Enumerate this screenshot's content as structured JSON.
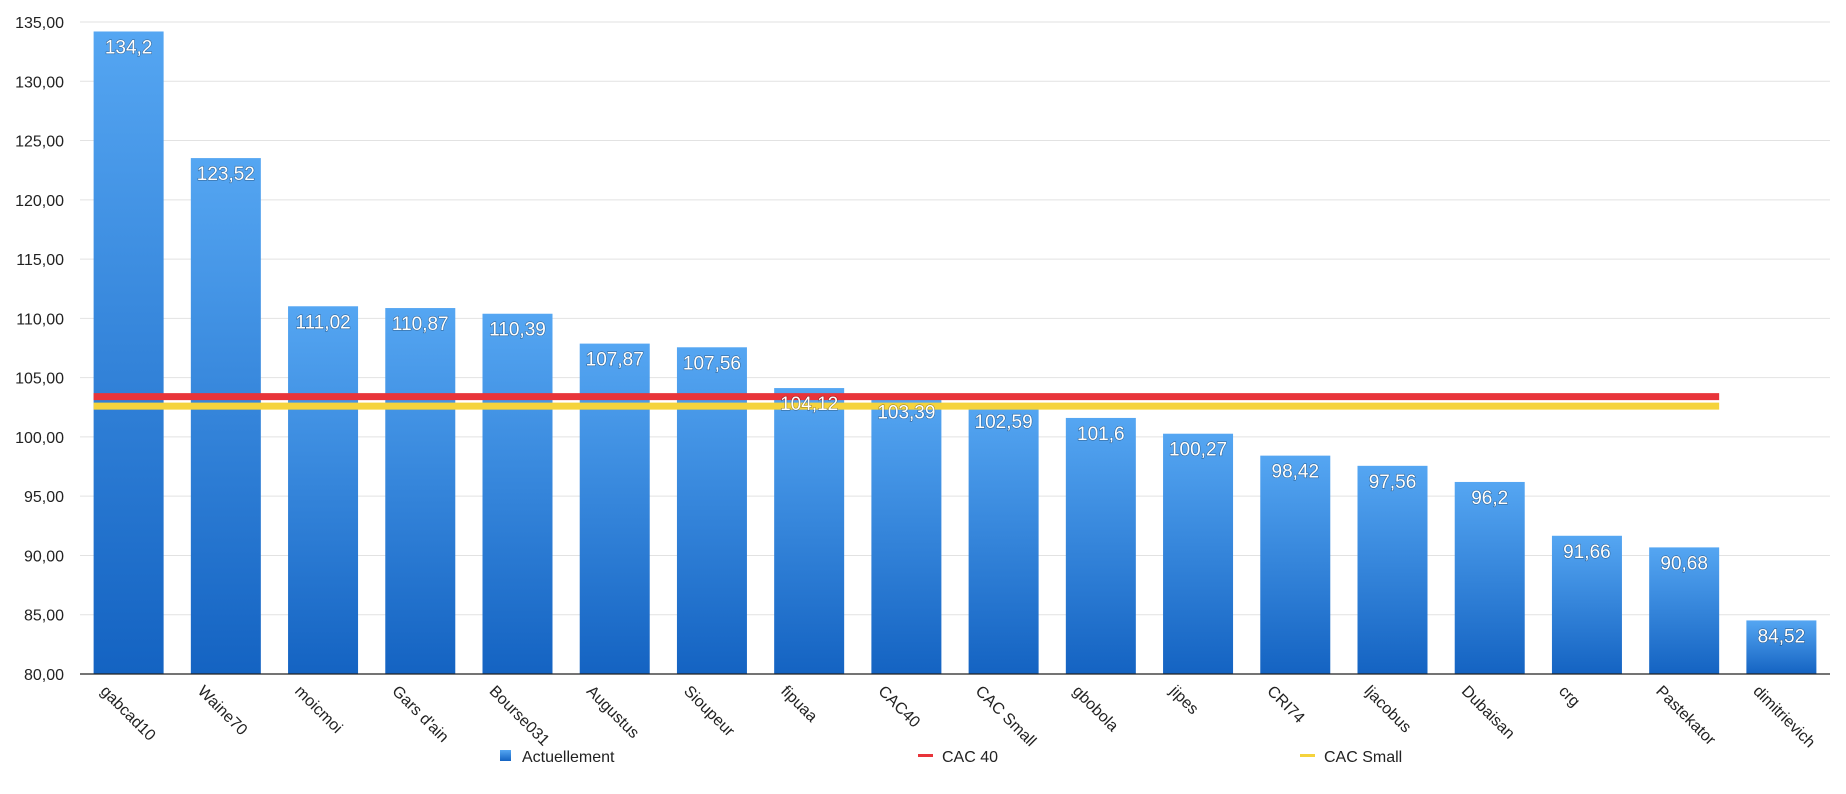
{
  "chart_data": {
    "type": "bar",
    "title": "",
    "xlabel": "",
    "ylabel": "",
    "ylim": [
      80,
      135
    ],
    "y_ticks": [
      "80,00",
      "85,00",
      "90,00",
      "95,00",
      "100,00",
      "105,00",
      "110,00",
      "115,00",
      "120,00",
      "125,00",
      "130,00",
      "135,00"
    ],
    "y_tick_step": 5,
    "grid": true,
    "legend_position": "bottom",
    "categories": [
      "gabcad10",
      "Waine70",
      "moicmoi",
      "Gars d'ain",
      "Bourse031",
      "Augustus",
      "Sioupeur",
      "fipuaa",
      "CAC40",
      "CAC Small",
      "gbobola",
      "jipes",
      "CRI74",
      "ljacobus",
      "Dubaisan",
      "crg",
      "Pastekator",
      "dimitrievich"
    ],
    "series": [
      {
        "name": "Actuellement",
        "kind": "bar",
        "color": "#2f86de",
        "values": [
          134.2,
          123.52,
          111.02,
          110.87,
          110.39,
          107.87,
          107.56,
          104.12,
          103.39,
          102.59,
          101.6,
          100.27,
          98.42,
          97.56,
          96.2,
          91.66,
          90.68,
          84.52
        ],
        "labels": [
          "134,2",
          "123,52",
          "111,02",
          "110,87",
          "110,39",
          "107,87",
          "107,56",
          "104,12",
          "103,39",
          "102,59",
          "101,6",
          "100,27",
          "98,42",
          "97,56",
          "96,2",
          "91,66",
          "90,68",
          "84,52"
        ]
      },
      {
        "name": "CAC 40",
        "kind": "line",
        "color": "#e8343a",
        "value": 103.4
      },
      {
        "name": "CAC Small",
        "kind": "line",
        "color": "#f5d33c",
        "value": 102.6
      }
    ]
  }
}
